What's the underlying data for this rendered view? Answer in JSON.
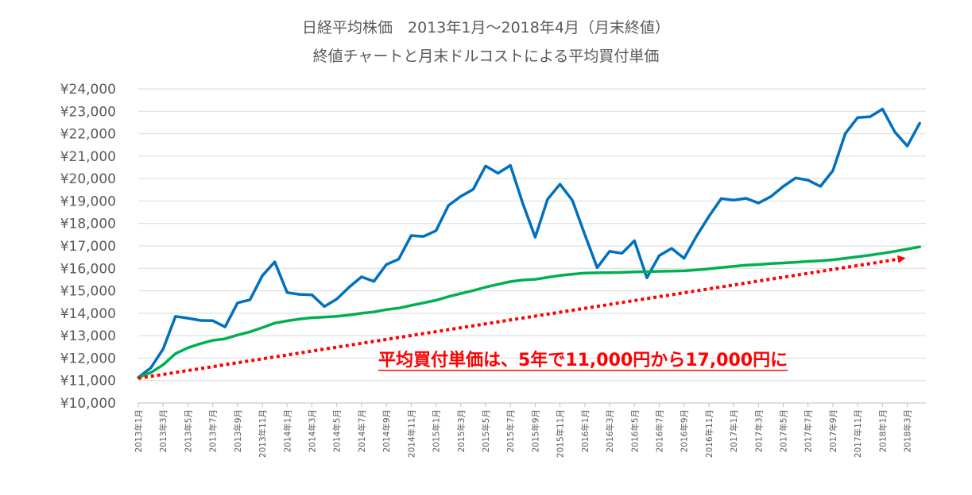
{
  "chart_data": {
    "type": "line",
    "title": "日経平均株価　2013年1月～2018年4月（月末終値）",
    "subtitle": "終値チャートと月末ドルコストによる平均買付単価",
    "ylim": [
      10000,
      24000
    ],
    "ytick_step": 1000,
    "ytick_prefix": "¥",
    "grid": true,
    "legend": "none",
    "x": [
      "2013年1月",
      "2013年2月",
      "2013年3月",
      "2013年4月",
      "2013年5月",
      "2013年6月",
      "2013年7月",
      "2013年8月",
      "2013年9月",
      "2013年10月",
      "2013年11月",
      "2013年12月",
      "2014年1月",
      "2014年2月",
      "2014年3月",
      "2014年4月",
      "2014年5月",
      "2014年6月",
      "2014年7月",
      "2014年8月",
      "2014年9月",
      "2014年10月",
      "2014年11月",
      "2014年12月",
      "2015年1月",
      "2015年2月",
      "2015年3月",
      "2015年4月",
      "2015年5月",
      "2015年6月",
      "2015年7月",
      "2015年8月",
      "2015年9月",
      "2015年10月",
      "2015年11月",
      "2015年12月",
      "2016年1月",
      "2016年2月",
      "2016年3月",
      "2016年4月",
      "2016年5月",
      "2016年6月",
      "2016年7月",
      "2016年8月",
      "2016年9月",
      "2016年10月",
      "2016年11月",
      "2016年12月",
      "2017年1月",
      "2017年2月",
      "2017年3月",
      "2017年4月",
      "2017年5月",
      "2017年6月",
      "2017年7月",
      "2017年8月",
      "2017年9月",
      "2017年10月",
      "2017年11月",
      "2017年12月",
      "2018年1月",
      "2018年2月",
      "2018年3月",
      "2018年4月"
    ],
    "x_tick_labels": [
      "2013年1月",
      "2013年3月",
      "2013年5月",
      "2013年7月",
      "2013年9月",
      "2013年11月",
      "2014年1月",
      "2014年3月",
      "2014年5月",
      "2014年7月",
      "2014年9月",
      "2014年11月",
      "2015年1月",
      "2015年3月",
      "2015年5月",
      "2015年7月",
      "2015年9月",
      "2015年11月",
      "2016年1月",
      "2016年3月",
      "2016年5月",
      "2016年7月",
      "2016年9月",
      "2016年11月",
      "2017年1月",
      "2017年3月",
      "2017年5月",
      "2017年7月",
      "2017年9月",
      "2017年11月",
      "2018年1月",
      "2018年3月"
    ],
    "series": [
      {
        "color": "#0070C0",
        "values": [
          11140,
          11560,
          12400,
          13860,
          13780,
          13680,
          13670,
          13390,
          14460,
          14600,
          15670,
          16290,
          14920,
          14840,
          14820,
          14300,
          14630,
          15160,
          15620,
          15420,
          16170,
          16410,
          17460,
          17420,
          17680,
          18800,
          19210,
          19520,
          20560,
          20240,
          20590,
          18890,
          17390,
          19080,
          19750,
          19030,
          17510,
          16030,
          16760,
          16670,
          17230,
          15580,
          16570,
          16890,
          16450,
          17430,
          18310,
          19110,
          19040,
          19120,
          18910,
          19200,
          19650,
          20030,
          19930,
          19650,
          20360,
          22010,
          22720,
          22760,
          23100,
          22070,
          21450,
          22470
        ]
      },
      {
        "color": "#00B050",
        "values": [
          11140,
          11350,
          11700,
          12200,
          12460,
          12640,
          12790,
          12860,
          13030,
          13170,
          13360,
          13560,
          13660,
          13740,
          13800,
          13830,
          13860,
          13920,
          14000,
          14060,
          14160,
          14230,
          14350,
          14460,
          14580,
          14740,
          14880,
          15010,
          15160,
          15290,
          15410,
          15480,
          15510,
          15600,
          15680,
          15740,
          15790,
          15800,
          15810,
          15820,
          15840,
          15850,
          15870,
          15880,
          15890,
          15930,
          15980,
          16040,
          16090,
          16140,
          16170,
          16210,
          16240,
          16270,
          16310,
          16340,
          16380,
          16450,
          16520,
          16590,
          16670,
          16760,
          16860,
          16960
        ]
      }
    ],
    "annotation": {
      "text": "平均買付単価は、5年で11,000円から17,000円に",
      "arrow_color": "#FF0000",
      "arrow_from": {
        "x": "2013年1月",
        "y": 11100
      },
      "arrow_to": {
        "x": "2018年3月",
        "y": 16450
      }
    }
  }
}
